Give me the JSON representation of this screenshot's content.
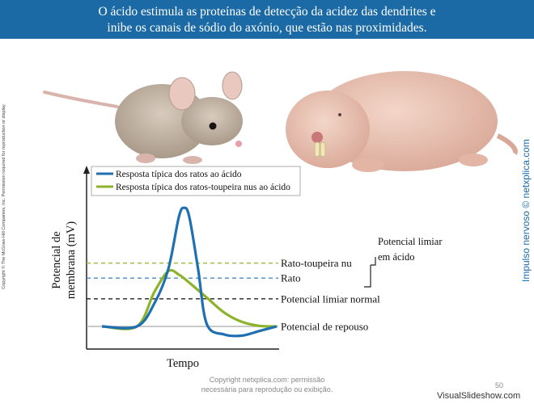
{
  "header": {
    "line1": "O ácido estimula as proteínas de detecção da acidez das dendrites e",
    "line2": "inibe os canais de sódio do axónio, que estão nas proximidades."
  },
  "side_copyright": "Copyright © The McGraw-Hill Companies, Inc. Permission required for reproduction or display.",
  "side_brand": "Impulso nervoso © netxplica.com",
  "footer": {
    "line1": "Copyright netxplica.com: permissão",
    "line2": "necessária para reprodução ou exibição.",
    "page_number": "50",
    "watermark": "VisualSlideshow.com"
  },
  "colors": {
    "banner": "#1b6aa5",
    "rat_series": "#1f6fb3",
    "mole_rat_series": "#8db32a"
  },
  "chart_data": {
    "type": "line",
    "xlabel": "Tempo",
    "ylabel": "Potencial de membrana (mV)",
    "legend_position": "top",
    "series": [
      {
        "name": "Resposta típica dos ratos ao ácido",
        "color": "#1f6fb3",
        "points": [
          [
            0,
            0
          ],
          [
            0.2,
            0
          ],
          [
            0.3,
            2
          ],
          [
            0.38,
            5
          ],
          [
            0.44,
            9.5
          ],
          [
            0.47,
            10.3
          ],
          [
            0.5,
            9.5
          ],
          [
            0.55,
            5
          ],
          [
            0.6,
            0.2
          ],
          [
            0.7,
            -0.7
          ],
          [
            0.8,
            -0.8
          ],
          [
            0.9,
            -0.4
          ],
          [
            1,
            0
          ]
        ]
      },
      {
        "name": "Resposta típica dos ratos-toupeira nus ao ácido",
        "color": "#8db32a",
        "points": [
          [
            0,
            0
          ],
          [
            0.2,
            0
          ],
          [
            0.3,
            3
          ],
          [
            0.38,
            4.8
          ],
          [
            0.44,
            4.5
          ],
          [
            0.5,
            3.8
          ],
          [
            0.6,
            2.5
          ],
          [
            0.7,
            1.2
          ],
          [
            0.8,
            0.4
          ],
          [
            0.9,
            0.05
          ],
          [
            1,
            0
          ]
        ]
      }
    ],
    "thresholds": [
      {
        "label": "Rato-toupeira nu",
        "style": "dashed",
        "color": "#9cbf4a",
        "level": 5.5
      },
      {
        "label": "Rato",
        "style": "dashed",
        "color": "#4a8ac8",
        "level": 4.2
      },
      {
        "label": "Potencial limiar normal",
        "style": "dashed",
        "color": "#222222",
        "level": 2.4
      },
      {
        "label": "Potencial de repouso",
        "style": "solid",
        "color": "#aaaaaa",
        "level": 0
      }
    ],
    "bracket_label": "Potencial limiar em ácido"
  }
}
